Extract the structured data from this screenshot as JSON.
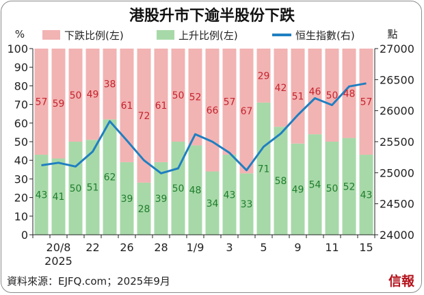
{
  "title": "港股升市下逾半股份下跌",
  "source": "資料來源：EJFQ.com；2025年9月",
  "brand": "信報",
  "colors": {
    "down": "#f2b3b3",
    "up": "#a7d9a8",
    "line": "#1f7fc1",
    "label_down": "#c4242d",
    "label_up": "#1f7d2c"
  },
  "chart_data": {
    "type": "bar",
    "stacked": true,
    "left_unit": "%",
    "right_unit": "點",
    "left_ylim": [
      0,
      100
    ],
    "left_yticks": [
      0,
      10,
      20,
      30,
      40,
      50,
      60,
      70,
      80,
      90,
      100
    ],
    "right_ylim": [
      24000,
      27000
    ],
    "right_yticks": [
      24000,
      24500,
      25000,
      25500,
      26000,
      26500,
      27000
    ],
    "x_ticks": [
      {
        "index": 1,
        "label": "20/8",
        "sublabel": "2025"
      },
      {
        "index": 3,
        "label": "22"
      },
      {
        "index": 5,
        "label": "26"
      },
      {
        "index": 7,
        "label": "28"
      },
      {
        "index": 9,
        "label": "1/9"
      },
      {
        "index": 11,
        "label": "3"
      },
      {
        "index": 13,
        "label": "5"
      },
      {
        "index": 15,
        "label": "9"
      },
      {
        "index": 17,
        "label": "11"
      },
      {
        "index": 19,
        "label": "15"
      }
    ],
    "legend": [
      {
        "key": "down",
        "label": "下跌比例(左)"
      },
      {
        "key": "up",
        "label": "上升比例(左)"
      },
      {
        "key": "index",
        "label": "恒生指數(右)"
      }
    ],
    "series": [
      {
        "key": "up",
        "name": "上升比例(左)",
        "values": [
          43,
          41,
          50,
          51,
          62,
          39,
          28,
          39,
          50,
          48,
          34,
          43,
          33,
          71,
          58,
          49,
          54,
          50,
          52,
          43
        ]
      },
      {
        "key": "down",
        "name": "下跌比例(左)",
        "values": [
          57,
          59,
          50,
          49,
          38,
          61,
          72,
          61,
          50,
          52,
          66,
          57,
          67,
          29,
          42,
          51,
          46,
          50,
          48,
          57
        ]
      },
      {
        "key": "index",
        "name": "恒生指數(右)",
        "axis": "right",
        "values": [
          25120,
          25160,
          25100,
          25340,
          25830,
          25520,
          25200,
          24990,
          25070,
          25620,
          25500,
          25320,
          25040,
          25420,
          25630,
          25930,
          26200,
          26090,
          26390,
          26440
        ]
      }
    ]
  }
}
